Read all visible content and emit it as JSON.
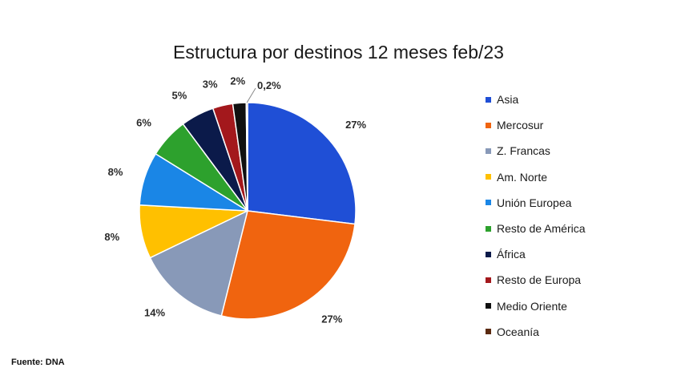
{
  "chart_data": {
    "type": "pie",
    "title": "Estructura por destinos 12 meses feb/23",
    "source": "Fuente: DNA",
    "slices": [
      {
        "name": "Asia",
        "value": 27,
        "label": "27%",
        "color": "#1f4fd6"
      },
      {
        "name": "Mercosur",
        "value": 27,
        "label": "27%",
        "color": "#f0640f"
      },
      {
        "name": "Z. Francas",
        "value": 14,
        "label": "14%",
        "color": "#8899b8"
      },
      {
        "name": "Am. Norte",
        "value": 8,
        "label": "8%",
        "color": "#ffc000"
      },
      {
        "name": "Unión Europea",
        "value": 8,
        "label": "8%",
        "color": "#1a86e6"
      },
      {
        "name": "Resto de América",
        "value": 6,
        "label": "6%",
        "color": "#2da12d"
      },
      {
        "name": "África",
        "value": 5,
        "label": "5%",
        "color": "#0b1a4a"
      },
      {
        "name": "Resto de Europa",
        "value": 3,
        "label": "3%",
        "color": "#a3181c"
      },
      {
        "name": "Medio Oriente",
        "value": 2,
        "label": "2%",
        "color": "#101010"
      },
      {
        "name": "Oceanía",
        "value": 0.2,
        "label": "0,2%",
        "color": "#5a2a10"
      }
    ],
    "legend_position": "right"
  }
}
